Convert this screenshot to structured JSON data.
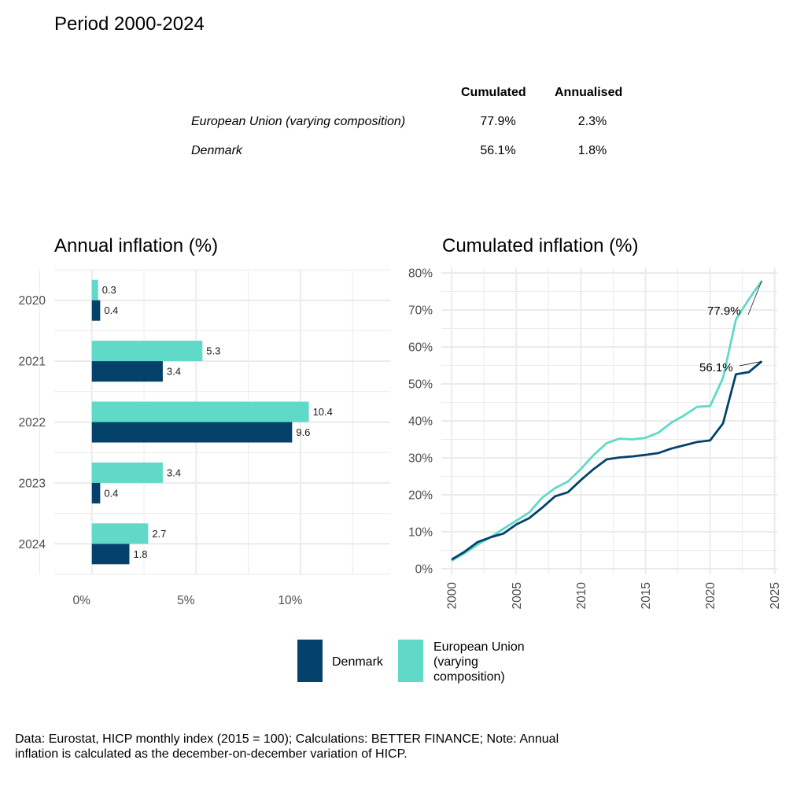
{
  "header": {
    "title": "Period 2000-2024"
  },
  "summary_table": {
    "columns": [
      "Cumulated",
      "Annualised"
    ],
    "rows": [
      {
        "label": "European Union (varying composition)",
        "cumulated": "77.9%",
        "annualised": "2.3%"
      },
      {
        "label": "Denmark",
        "cumulated": "56.1%",
        "annualised": "1.8%"
      }
    ]
  },
  "colors": {
    "denmark": "#04426B",
    "eu": "#61D9C8",
    "grid": "#EBEBEB",
    "axis_text": "#4D4D4D"
  },
  "legend": {
    "items": [
      {
        "label": "Denmark",
        "series": "denmark"
      },
      {
        "label_lines": [
          "European Union",
          "(varying",
          "composition)"
        ],
        "series": "eu"
      }
    ]
  },
  "caption": {
    "line1": "Data: Eurostat, HICP monthly index (2015 = 100); Calculations: BETTER FINANCE; Note: Annual",
    "line2": "inflation is calculated as the december-on-december variation of HICP."
  },
  "chart_data": [
    {
      "type": "bar",
      "orientation": "horizontal",
      "title": "Annual inflation (%)",
      "xlabel": "",
      "ylabel": "",
      "categories": [
        "2020",
        "2021",
        "2022",
        "2023",
        "2024"
      ],
      "series": [
        {
          "name": "European Union (varying composition)",
          "key": "eu",
          "values": [
            0.3,
            5.3,
            10.4,
            3.4,
            2.7
          ]
        },
        {
          "name": "Denmark",
          "key": "denmark",
          "values": [
            0.4,
            3.4,
            9.6,
            0.4,
            1.8
          ]
        }
      ],
      "xlim": [
        -1.8,
        14.3
      ],
      "xticks": [
        0,
        5,
        10
      ],
      "xtick_labels": [
        "0%",
        "5%",
        "10%"
      ],
      "grid": true,
      "data_labels": true
    },
    {
      "type": "line",
      "title": "Cumulated inflation (%)",
      "xlabel": "",
      "ylabel": "",
      "x": [
        2000,
        2001,
        2002,
        2003,
        2004,
        2005,
        2006,
        2007,
        2008,
        2009,
        2010,
        2011,
        2012,
        2013,
        2014,
        2015,
        2016,
        2017,
        2018,
        2019,
        2020,
        2021,
        2022,
        2023,
        2024
      ],
      "series": [
        {
          "name": "Denmark",
          "key": "denmark",
          "values": [
            2.5,
            4.6,
            7.2,
            8.5,
            9.5,
            12.0,
            13.7,
            16.5,
            19.6,
            20.7,
            24.0,
            27.0,
            29.6,
            30.1,
            30.4,
            30.8,
            31.3,
            32.5,
            33.4,
            34.3,
            34.7,
            39.3,
            52.6,
            53.2,
            56.1
          ]
        },
        {
          "name": "European Union (varying composition)",
          "key": "eu",
          "values": [
            2.2,
            4.2,
            6.5,
            8.5,
            10.8,
            13.0,
            15.2,
            19.2,
            21.8,
            23.6,
            27.0,
            30.8,
            34.0,
            35.2,
            35.0,
            35.4,
            36.8,
            39.5,
            41.5,
            43.8,
            44.0,
            51.6,
            67.4,
            72.9,
            77.9
          ]
        }
      ],
      "annotations": [
        {
          "text": "77.9%",
          "series": "eu",
          "x": 2024,
          "y": 77.9
        },
        {
          "text": "56.1%",
          "series": "denmark",
          "x": 2024,
          "y": 56.1
        }
      ],
      "xlim": [
        1999.2,
        2025.2
      ],
      "ylim": [
        -1.5,
        81.5
      ],
      "xticks": [
        2000,
        2005,
        2010,
        2015,
        2020,
        2025
      ],
      "xtick_labels": [
        "2000",
        "2005",
        "2010",
        "2015",
        "2020",
        "2025"
      ],
      "yticks": [
        0,
        10,
        20,
        30,
        40,
        50,
        60,
        70,
        80
      ],
      "ytick_labels": [
        "0%",
        "10%",
        "20%",
        "30%",
        "40%",
        "50%",
        "60%",
        "70%",
        "80%"
      ],
      "grid": true,
      "legend": "bottom-center"
    }
  ]
}
